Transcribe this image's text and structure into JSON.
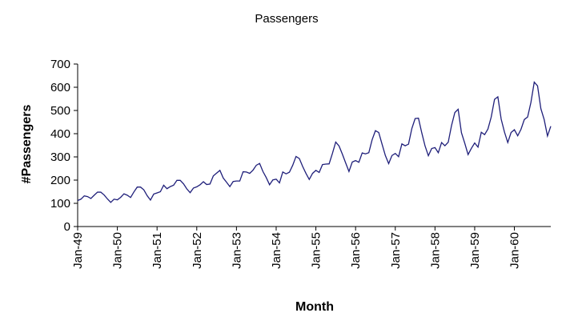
{
  "chart_data": {
    "type": "line",
    "title": "Passengers",
    "xlabel": "Month",
    "ylabel": "#Passengers",
    "ylim": [
      0,
      700
    ],
    "yticks": [
      0,
      100,
      200,
      300,
      400,
      500,
      600,
      700
    ],
    "xtick_labels": [
      "Jan-49",
      "Jan-50",
      "Jan-51",
      "Jan-52",
      "Jan-53",
      "Jan-54",
      "Jan-55",
      "Jan-56",
      "Jan-57",
      "Jan-58",
      "Jan-59",
      "Jan-60"
    ],
    "grid": false,
    "legend": "none",
    "series": [
      {
        "color": "#1f1f7a",
        "x": [
          "Jan-49",
          "Feb-49",
          "Mar-49",
          "Apr-49",
          "May-49",
          "Jun-49",
          "Jul-49",
          "Aug-49",
          "Sep-49",
          "Oct-49",
          "Nov-49",
          "Dec-49",
          "Jan-50",
          "Feb-50",
          "Mar-50",
          "Apr-50",
          "May-50",
          "Jun-50",
          "Jul-50",
          "Aug-50",
          "Sep-50",
          "Oct-50",
          "Nov-50",
          "Dec-50",
          "Jan-51",
          "Feb-51",
          "Mar-51",
          "Apr-51",
          "May-51",
          "Jun-51",
          "Jul-51",
          "Aug-51",
          "Sep-51",
          "Oct-51",
          "Nov-51",
          "Dec-51",
          "Jan-52",
          "Feb-52",
          "Mar-52",
          "Apr-52",
          "May-52",
          "Jun-52",
          "Jul-52",
          "Aug-52",
          "Sep-52",
          "Oct-52",
          "Nov-52",
          "Dec-52",
          "Jan-53",
          "Feb-53",
          "Mar-53",
          "Apr-53",
          "May-53",
          "Jun-53",
          "Jul-53",
          "Aug-53",
          "Sep-53",
          "Oct-53",
          "Nov-53",
          "Dec-53",
          "Jan-54",
          "Feb-54",
          "Mar-54",
          "Apr-54",
          "May-54",
          "Jun-54",
          "Jul-54",
          "Aug-54",
          "Sep-54",
          "Oct-54",
          "Nov-54",
          "Dec-54",
          "Jan-55",
          "Feb-55",
          "Mar-55",
          "Apr-55",
          "May-55",
          "Jun-55",
          "Jul-55",
          "Aug-55",
          "Sep-55",
          "Oct-55",
          "Nov-55",
          "Dec-55",
          "Jan-56",
          "Feb-56",
          "Mar-56",
          "Apr-56",
          "May-56",
          "Jun-56",
          "Jul-56",
          "Aug-56",
          "Sep-56",
          "Oct-56",
          "Nov-56",
          "Dec-56",
          "Jan-57",
          "Feb-57",
          "Mar-57",
          "Apr-57",
          "May-57",
          "Jun-57",
          "Jul-57",
          "Aug-57",
          "Sep-57",
          "Oct-57",
          "Nov-57",
          "Dec-57",
          "Jan-58",
          "Feb-58",
          "Mar-58",
          "Apr-58",
          "May-58",
          "Jun-58",
          "Jul-58",
          "Aug-58",
          "Sep-58",
          "Oct-58",
          "Nov-58",
          "Dec-58",
          "Jan-59",
          "Feb-59",
          "Mar-59",
          "Apr-59",
          "May-59",
          "Jun-59",
          "Jul-59",
          "Aug-59",
          "Sep-59",
          "Oct-59",
          "Nov-59",
          "Dec-59",
          "Jan-60",
          "Feb-60",
          "Mar-60",
          "Apr-60",
          "May-60",
          "Jun-60",
          "Jul-60",
          "Aug-60",
          "Sep-60",
          "Oct-60",
          "Nov-60",
          "Dec-60"
        ],
        "values": [
          112,
          118,
          132,
          129,
          121,
          135,
          148,
          148,
          136,
          119,
          104,
          118,
          115,
          126,
          141,
          135,
          125,
          149,
          170,
          170,
          158,
          133,
          114,
          140,
          145,
          150,
          178,
          163,
          172,
          178,
          199,
          199,
          184,
          162,
          146,
          166,
          171,
          180,
          193,
          181,
          183,
          218,
          230,
          242,
          209,
          191,
          172,
          194,
          196,
          196,
          236,
          235,
          229,
          243,
          264,
          272,
          237,
          211,
          180,
          201,
          204,
          188,
          235,
          227,
          234,
          264,
          302,
          293,
          259,
          229,
          203,
          229,
          242,
          233,
          267,
          269,
          270,
          315,
          364,
          347,
          312,
          274,
          237,
          278,
          284,
          277,
          317,
          313,
          318,
          374,
          413,
          405,
          355,
          306,
          271,
          306,
          315,
          301,
          356,
          348,
          355,
          422,
          465,
          467,
          404,
          347,
          305,
          336,
          340,
          318,
          362,
          348,
          363,
          435,
          491,
          505,
          404,
          359,
          310,
          337,
          360,
          342,
          406,
          396,
          420,
          472,
          548,
          559,
          463,
          407,
          362,
          405,
          417,
          391,
          419,
          461,
          472,
          535,
          622,
          606,
          508,
          461,
          390,
          432
        ]
      }
    ]
  }
}
